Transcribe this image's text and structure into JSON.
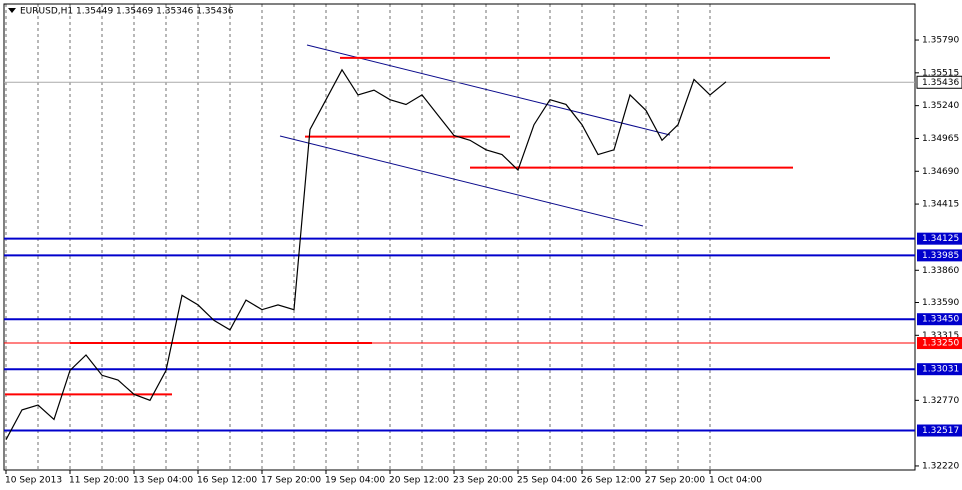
{
  "chart_data": {
    "type": "line",
    "title": "EURUSD,H1 1.35449 1.35469 1.35346 1.35436",
    "categories": [
      "10 Sep 2013",
      null,
      null,
      null,
      "11 Sep 20:00",
      null,
      null,
      null,
      "13 Sep 04:00",
      null,
      null,
      null,
      "16 Sep 12:00",
      null,
      null,
      null,
      "17 Sep 20:00",
      null,
      null,
      null,
      "19 Sep 04:00",
      null,
      null,
      null,
      "20 Sep 12:00",
      null,
      null,
      null,
      "23 Sep 20:00",
      null,
      null,
      null,
      "25 Sep 04:00",
      null,
      null,
      null,
      "26 Sep 12:00",
      null,
      null,
      null,
      "27 Sep 20:00",
      null,
      null,
      null,
      "1 Oct 04:00",
      null
    ],
    "series": [
      {
        "name": "EURUSD",
        "color": "#000000",
        "values": [
          1.3244,
          1.3269,
          1.3273,
          1.3261,
          1.3302,
          1.3315,
          1.3298,
          1.3294,
          1.3282,
          1.3277,
          1.3302,
          1.3365,
          1.3357,
          1.3344,
          1.3336,
          1.3361,
          1.3353,
          1.3357,
          1.3353,
          1.3504,
          1.3529,
          1.3554,
          1.3533,
          1.3537,
          1.3529,
          1.3525,
          1.3533,
          1.3516,
          1.3499,
          1.3495,
          1.3487,
          1.3483,
          1.347,
          1.3508,
          1.3529,
          1.3525,
          1.3508,
          1.3483,
          1.3487,
          1.3533,
          1.352,
          1.3495,
          1.3508,
          1.3546,
          1.3533,
          1.3544
        ]
      }
    ],
    "ylim": [
      1.32186,
      1.36092
    ],
    "yticks": [
      {
        "value": 1.3579,
        "label": "1.35790"
      },
      {
        "value": 1.35515,
        "label": "1.35515"
      },
      {
        "value": 1.3524,
        "label": "1.35240"
      },
      {
        "value": 1.34965,
        "label": "1.34965"
      },
      {
        "value": 1.3469,
        "label": "1.34690"
      },
      {
        "value": 1.34415,
        "label": "1.34415"
      },
      {
        "value": 1.3386,
        "label": "1.33860"
      },
      {
        "value": 1.3359,
        "label": "1.33590"
      },
      {
        "value": 1.33315,
        "label": "1.33315"
      },
      {
        "value": 1.3277,
        "label": "1.32770"
      },
      {
        "value": 1.3222,
        "label": "1.32220"
      }
    ],
    "current_price": {
      "value": 1.35436,
      "label": "1.35436"
    },
    "levels": [
      {
        "value": 1.34125,
        "label": "1.34125",
        "color": "#0000cc"
      },
      {
        "value": 1.33985,
        "label": "1.33985",
        "color": "#0000cc"
      },
      {
        "value": 1.3345,
        "label": "1.33450",
        "color": "#0000cc"
      },
      {
        "value": 1.3325,
        "label": "1.33250",
        "color": "#ff0000"
      },
      {
        "value": 1.33031,
        "label": "1.33031",
        "color": "#0000cc"
      },
      {
        "value": 1.32517,
        "label": "1.32517",
        "color": "#0000cc"
      }
    ],
    "resistance": [
      1.3564,
      1.3498,
      1.3472,
      1.3325,
      1.3282
    ],
    "resistance_color": "#ff0000"
  }
}
